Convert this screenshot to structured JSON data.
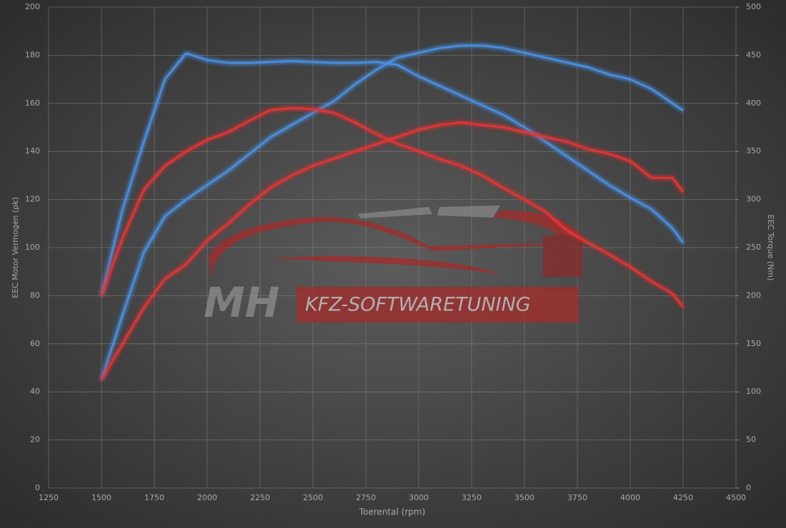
{
  "chart_data": {
    "type": "line",
    "x_label": "Toerental (rpm)",
    "y_label": "EEC Motor Vermogen (pk)",
    "y2_label": "EEC Torque (Nm)",
    "annotations": [
      "MH",
      "KFZ-SOFTWARETUNING"
    ],
    "x": [
      1500,
      1600,
      1700,
      1800,
      1900,
      2000,
      2100,
      2200,
      2300,
      2400,
      2500,
      2600,
      2700,
      2800,
      2900,
      3000,
      3100,
      3200,
      3300,
      3400,
      3500,
      3600,
      3700,
      3800,
      3900,
      4000,
      4100,
      4200,
      4250
    ],
    "series": [
      {
        "color": "#4a8fe0",
        "axis": "y2",
        "values": [
          200,
          290,
          360,
          425,
          452,
          445,
          442,
          442,
          443,
          444,
          443,
          442,
          442,
          443,
          440,
          428,
          418,
          408,
          398,
          388,
          375,
          360,
          345,
          330,
          315,
          302,
          290,
          270,
          255
        ]
      },
      {
        "color": "#4a8fe0",
        "values": [
          45,
          72,
          98,
          113,
          120,
          126,
          132,
          139,
          146,
          151,
          156,
          161,
          168,
          174,
          179,
          181,
          183,
          184,
          184,
          183,
          181,
          179,
          177,
          175,
          172,
          170,
          166,
          160,
          157
        ]
      },
      {
        "color": "#e03434",
        "axis": "y2",
        "values": [
          200,
          260,
          310,
          335,
          350,
          362,
          370,
          382,
          393,
          395,
          394,
          390,
          380,
          368,
          358,
          350,
          342,
          335,
          325,
          312,
          300,
          287,
          268,
          255,
          243,
          230,
          215,
          202,
          188
        ]
      },
      {
        "color": "#e03434",
        "values": [
          45,
          60,
          75,
          87,
          93,
          103,
          110,
          118,
          125,
          130,
          134,
          137,
          140,
          143,
          146,
          149,
          151,
          152,
          151,
          150,
          148,
          146,
          144,
          141,
          139,
          136,
          129,
          129,
          123
        ]
      }
    ],
    "xlim": [
      1250,
      4500
    ],
    "xticks": [
      1250,
      1500,
      1750,
      2000,
      2250,
      2500,
      2750,
      3000,
      3250,
      3500,
      3750,
      4000,
      4250,
      4500
    ],
    "ylim": [
      0,
      200
    ],
    "yticks": [
      0,
      20,
      40,
      60,
      80,
      100,
      120,
      140,
      160,
      180,
      200
    ],
    "y2lim": [
      0,
      500
    ],
    "y2ticks": [
      0,
      50,
      100,
      150,
      200,
      250,
      300,
      350,
      400,
      450,
      500
    ],
    "grid": true
  }
}
